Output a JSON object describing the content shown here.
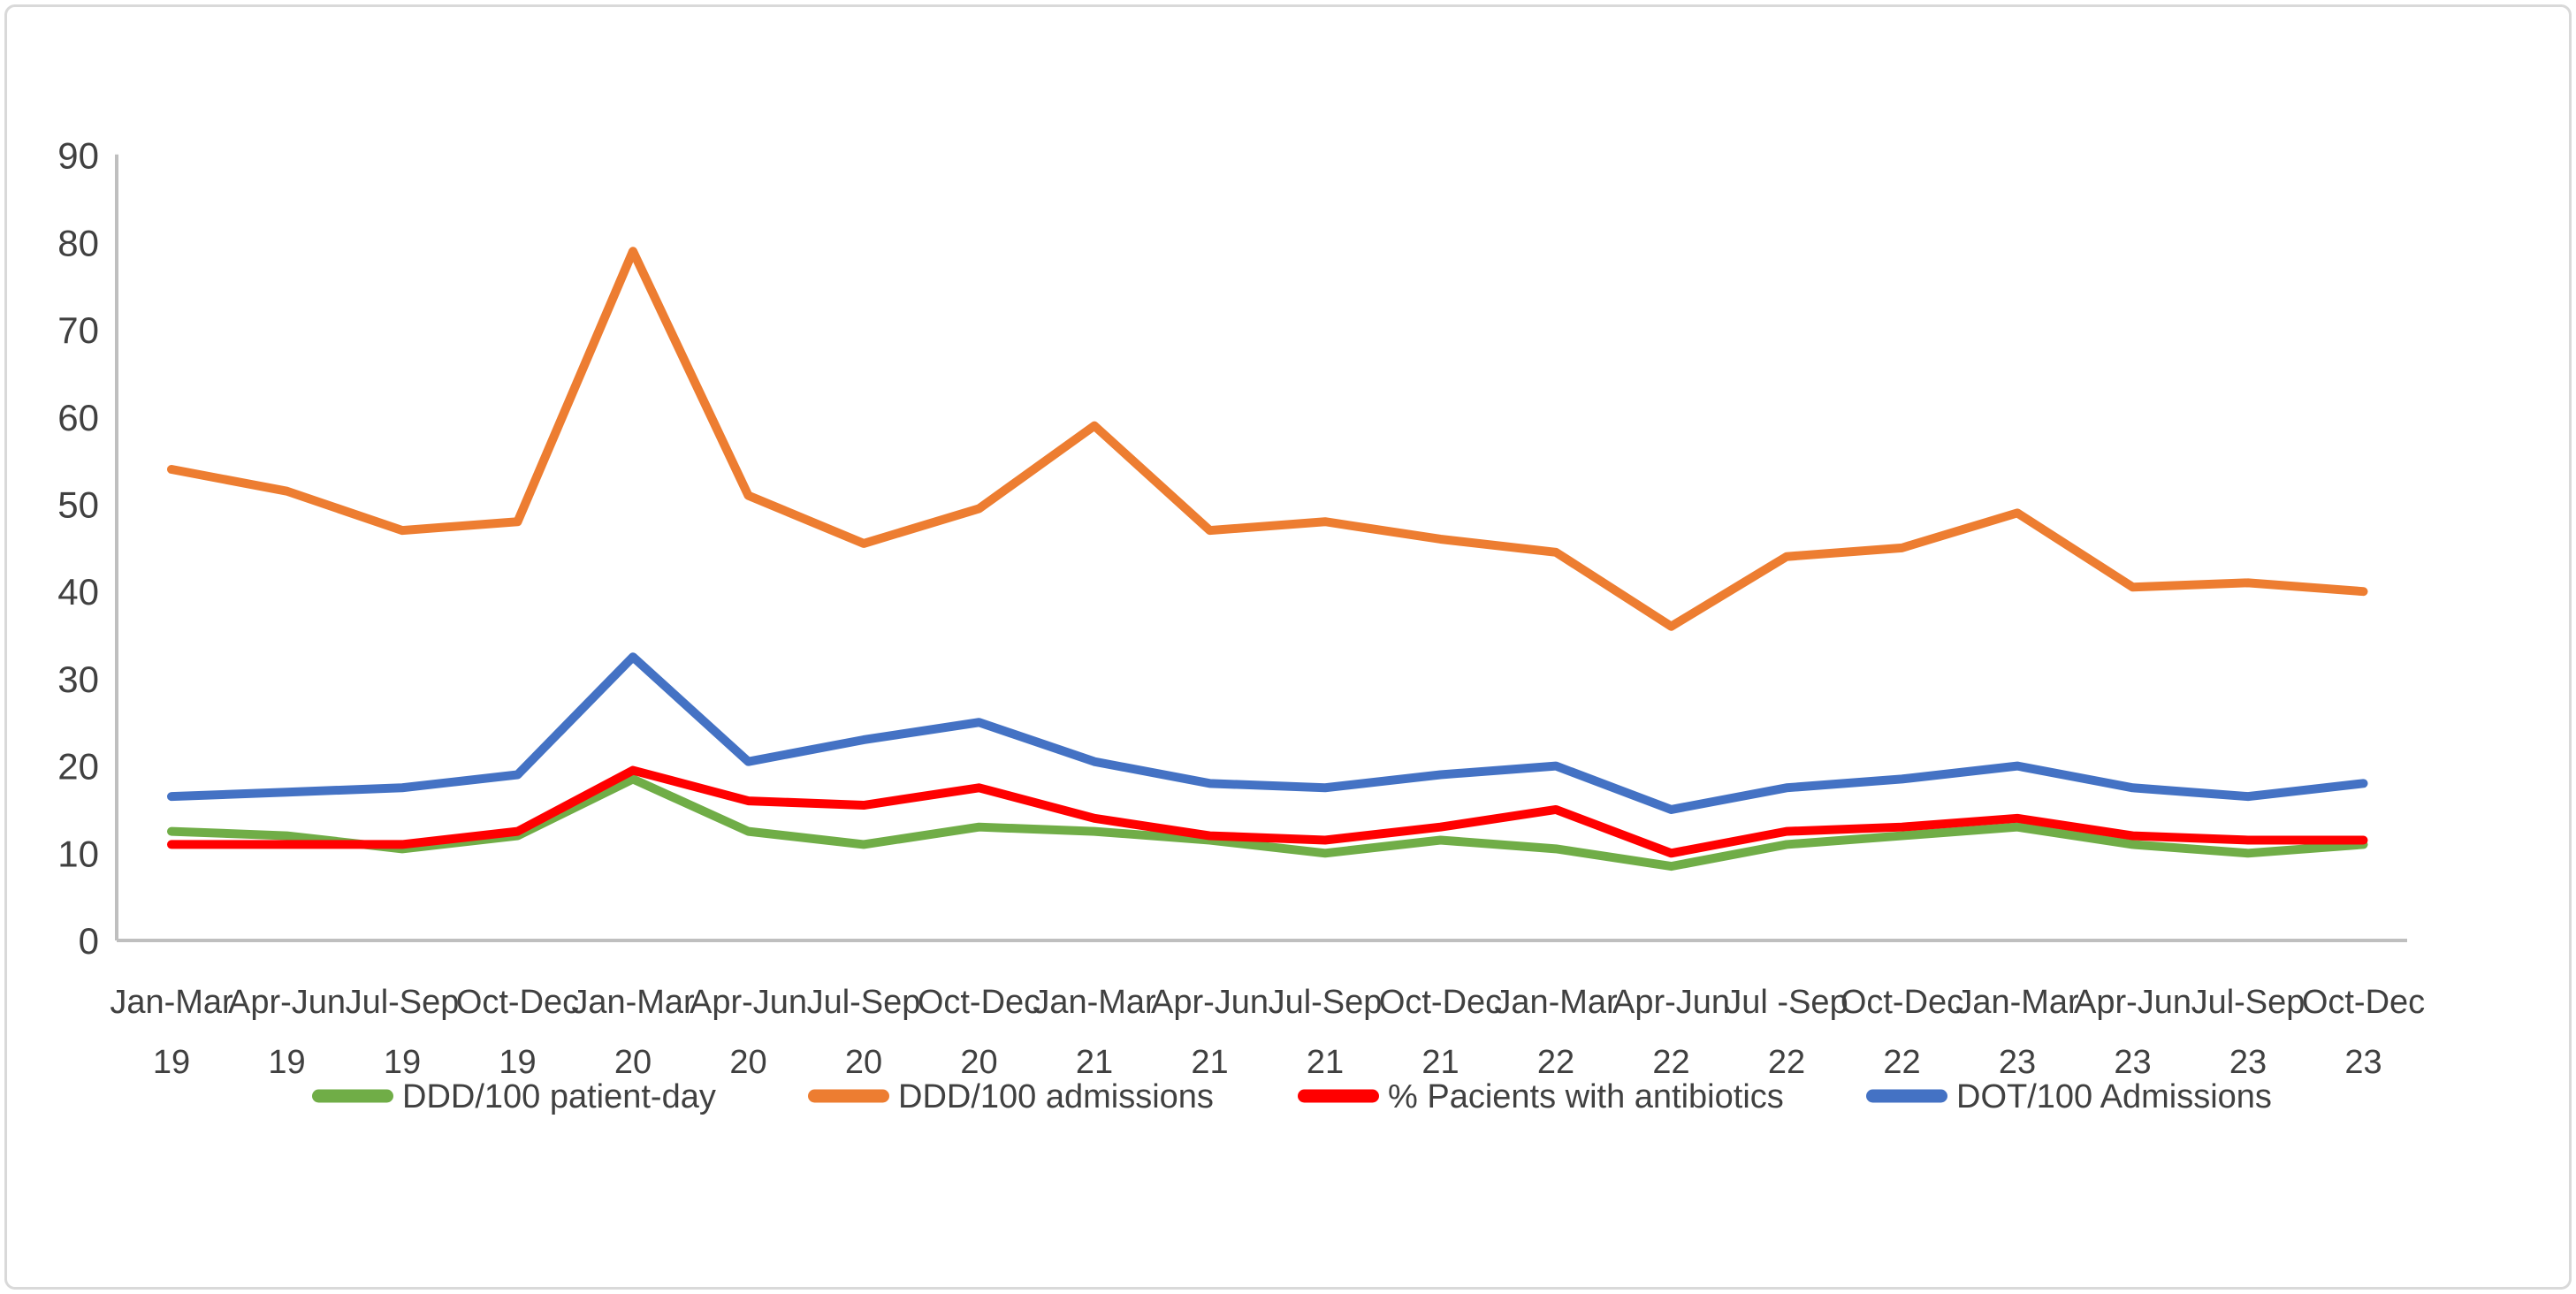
{
  "chart_data": {
    "type": "line",
    "title": "",
    "xlabel": "",
    "ylabel": "",
    "ylim": [
      0,
      90
    ],
    "y_tick_step": 10,
    "y_ticks": [
      0,
      10,
      20,
      30,
      40,
      50,
      60,
      70,
      80,
      90
    ],
    "grid": false,
    "legend_position": "bottom",
    "axis_color": "#BFBFBF",
    "text_color": "#404040",
    "categories": [
      "Jan-Mar 19",
      "Apr-Jun 19",
      "Jul-Sep 19",
      "Oct-Dec 19",
      "Jan-Mar 20",
      "Apr-Jun 20",
      "Jul-Sep 20",
      "Oct-Dec 20",
      "Jan-Mar 21",
      "Apr-Jun 21",
      "Jul-Sep 21",
      "Oct-Dec 21",
      "Jan-Mar 22",
      "Apr-Jun 22",
      "Jul -Sep 22",
      "Oct-Dec 22",
      "Jan-Mar 23",
      "Apr-Jun 23",
      "Jul-Sep 23",
      "Oct-Dec 23"
    ],
    "categories_line1": [
      "Jan-Mar",
      "Apr-Jun",
      "Jul-Sep",
      "Oct-Dec",
      "Jan-Mar",
      "Apr-Jun",
      "Jul-Sep",
      "Oct-Dec",
      "Jan-Mar",
      "Apr-Jun",
      "Jul-Sep",
      "Oct-Dec",
      "Jan-Mar",
      "Apr-Jun",
      "Jul -Sep",
      "Oct-Dec",
      "Jan-Mar",
      "Apr-Jun",
      "Jul-Sep",
      "Oct-Dec"
    ],
    "categories_line2": [
      "19",
      "19",
      "19",
      "19",
      "20",
      "20",
      "20",
      "20",
      "21",
      "21",
      "21",
      "21",
      "22",
      "22",
      "22",
      "22",
      "23",
      "23",
      "23",
      "23"
    ],
    "series": [
      {
        "name": "DDD/100 patient-day",
        "color": "#70AD47",
        "values": [
          12.5,
          12,
          10.5,
          12,
          18.5,
          12.5,
          11,
          13,
          12.5,
          11.5,
          10,
          11.5,
          10.5,
          8.5,
          11,
          12,
          13,
          11,
          10,
          11
        ]
      },
      {
        "name": "DDD/100 admissions",
        "color": "#ED7D31",
        "values": [
          54,
          51.5,
          47,
          48,
          79,
          51,
          45.5,
          49.5,
          59,
          47,
          48,
          46,
          44.5,
          36,
          44,
          45,
          49,
          40.5,
          41,
          40
        ]
      },
      {
        "name": "% Pacients with antibiotics",
        "color": "#FF0000",
        "values": [
          11,
          11,
          11,
          12.5,
          19.5,
          16,
          15.5,
          17.5,
          14,
          12,
          11.5,
          13,
          15,
          10,
          12.5,
          13,
          14,
          12,
          11.5,
          11.5
        ]
      },
      {
        "name": "DOT/100 Admissions",
        "color": "#4472C4",
        "values": [
          16.5,
          17,
          17.5,
          19,
          32.5,
          20.5,
          23,
          25,
          20.5,
          18,
          17.5,
          19,
          20,
          15,
          17.5,
          18.5,
          20,
          17.5,
          16.5,
          18
        ]
      }
    ]
  }
}
